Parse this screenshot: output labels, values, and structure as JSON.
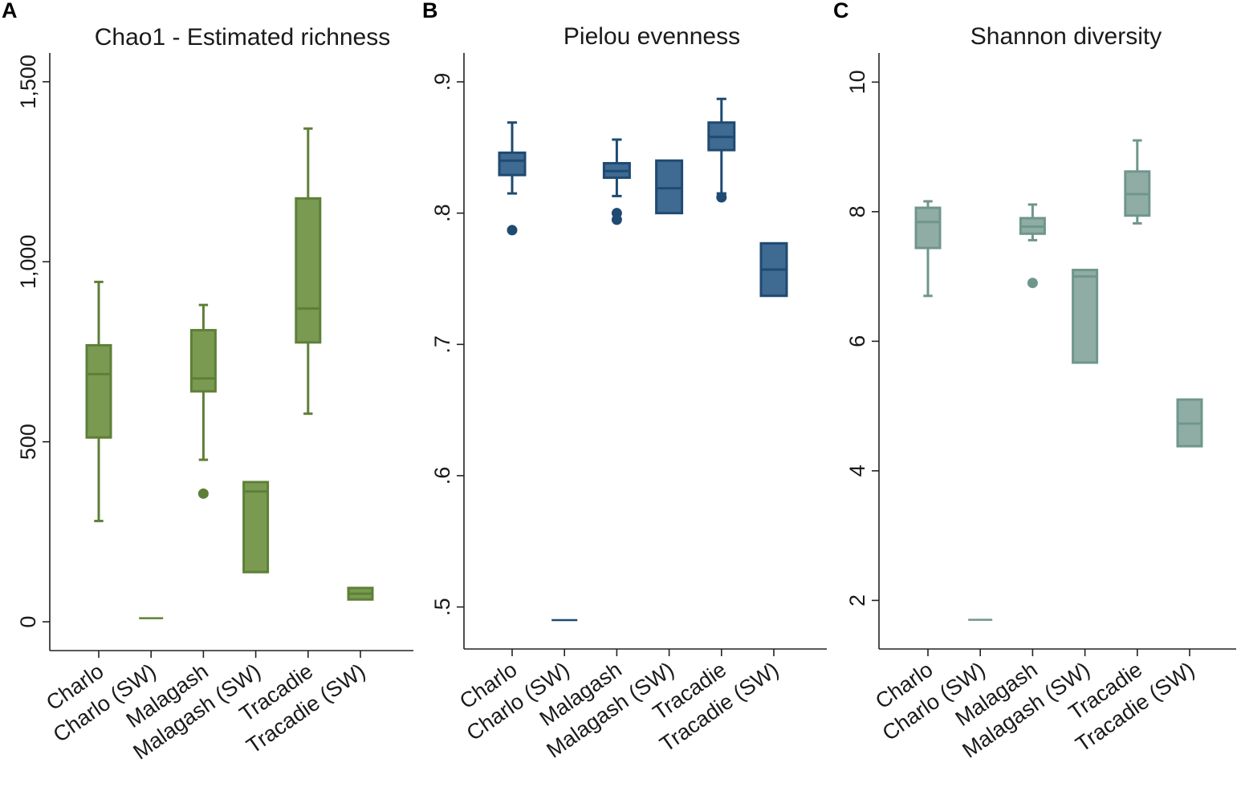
{
  "chart_data": [
    {
      "panel_letter": "A",
      "type": "box",
      "title": "Chao1 - Estimated richness",
      "color": "#5e7f37",
      "fill": "#7a9a52",
      "categories": [
        "Charlo",
        "Charlo (SW)",
        "Malagash",
        "Malagash (SW)",
        "Tracadie",
        "Tracadie (SW)"
      ],
      "ylim": [
        -80,
        1580
      ],
      "yticks": [
        0,
        500,
        1000,
        1500
      ],
      "yticklabels": [
        "0",
        "500",
        "1,000",
        "1,500"
      ],
      "boxes": [
        {
          "whisker_low": 280,
          "q1": 512,
          "median": 688,
          "q3": 768,
          "whisker_high": 944,
          "outliers": []
        },
        {
          "whisker_low": 10,
          "q1": 10,
          "median": 10,
          "q3": 10,
          "whisker_high": 10,
          "outliers": []
        },
        {
          "whisker_low": 450,
          "q1": 640,
          "median": 676,
          "q3": 810,
          "whisker_high": 880,
          "outliers": [
            356
          ]
        },
        {
          "whisker_low": 138,
          "q1": 138,
          "median": 362,
          "q3": 388,
          "whisker_high": 388,
          "outliers": []
        },
        {
          "whisker_low": 578,
          "q1": 776,
          "median": 870,
          "q3": 1176,
          "whisker_high": 1370,
          "outliers": []
        },
        {
          "whisker_low": 62,
          "q1": 62,
          "median": 78,
          "q3": 94,
          "whisker_high": 94,
          "outliers": []
        }
      ]
    },
    {
      "panel_letter": "B",
      "type": "box",
      "title": "Pielou evenness",
      "color": "#1f4a72",
      "fill": "#3f6a91",
      "categories": [
        "Charlo",
        "Charlo (SW)",
        "Malagash",
        "Malagash (SW)",
        "Tracadie",
        "Tracadie (SW)"
      ],
      "ylim": [
        0.468,
        0.922
      ],
      "yticks": [
        0.5,
        0.6,
        0.7,
        0.8,
        0.9
      ],
      "yticklabels": [
        ".5",
        ".6",
        ".7",
        ".8",
        ".9"
      ],
      "boxes": [
        {
          "whisker_low": 0.815,
          "q1": 0.829,
          "median": 0.84,
          "q3": 0.846,
          "whisker_high": 0.869,
          "outliers": [
            0.787
          ]
        },
        {
          "whisker_low": 0.49,
          "q1": 0.49,
          "median": 0.49,
          "q3": 0.49,
          "whisker_high": 0.49,
          "outliers": []
        },
        {
          "whisker_low": 0.813,
          "q1": 0.827,
          "median": 0.832,
          "q3": 0.838,
          "whisker_high": 0.856,
          "outliers": [
            0.8,
            0.795
          ]
        },
        {
          "whisker_low": 0.8,
          "q1": 0.8,
          "median": 0.819,
          "q3": 0.84,
          "whisker_high": 0.84,
          "outliers": []
        },
        {
          "whisker_low": 0.815,
          "q1": 0.848,
          "median": 0.858,
          "q3": 0.869,
          "whisker_high": 0.887,
          "outliers": [
            0.812
          ]
        },
        {
          "whisker_low": 0.737,
          "q1": 0.737,
          "median": 0.757,
          "q3": 0.777,
          "whisker_high": 0.777,
          "outliers": []
        }
      ]
    },
    {
      "panel_letter": "C",
      "type": "box",
      "title": "Shannon diversity",
      "color": "#6f968c",
      "fill": "#8fada4",
      "categories": [
        "Charlo",
        "Charlo (SW)",
        "Malagash",
        "Malagash (SW)",
        "Tracadie",
        "Tracadie (SW)"
      ],
      "ylim": [
        1.25,
        10.45
      ],
      "yticks": [
        2,
        4,
        6,
        8,
        10
      ],
      "yticklabels": [
        "2",
        "4",
        "6",
        "8",
        "10"
      ],
      "boxes": [
        {
          "whisker_low": 6.7,
          "q1": 7.44,
          "median": 7.84,
          "q3": 8.06,
          "whisker_high": 8.16,
          "outliers": []
        },
        {
          "whisker_low": 1.7,
          "q1": 1.7,
          "median": 1.7,
          "q3": 1.7,
          "whisker_high": 1.7,
          "outliers": []
        },
        {
          "whisker_low": 7.56,
          "q1": 7.66,
          "median": 7.77,
          "q3": 7.9,
          "whisker_high": 8.11,
          "outliers": [
            6.9
          ]
        },
        {
          "whisker_low": 5.67,
          "q1": 5.67,
          "median": 7.0,
          "q3": 7.1,
          "whisker_high": 7.1,
          "outliers": []
        },
        {
          "whisker_low": 7.82,
          "q1": 7.94,
          "median": 8.27,
          "q3": 8.62,
          "whisker_high": 9.1,
          "outliers": []
        },
        {
          "whisker_low": 4.38,
          "q1": 4.38,
          "median": 4.73,
          "q3": 5.1,
          "whisker_high": 5.1,
          "outliers": []
        }
      ]
    }
  ]
}
